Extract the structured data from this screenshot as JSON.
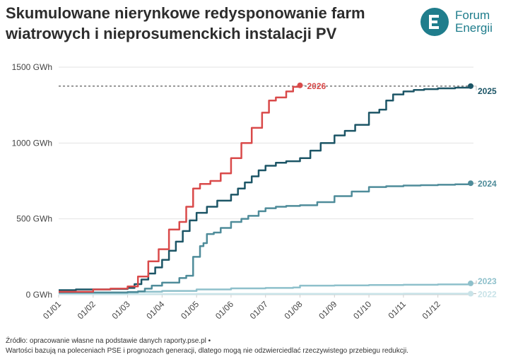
{
  "header": {
    "title": "Skumulowane nierynkowe redysponowanie farm wiatrowych i nieprosumenckich instalacji PV"
  },
  "logo": {
    "line1": "Forum",
    "line2": "Energii",
    "brand_color": "#1f7d8c"
  },
  "footer": {
    "source": "Źródło: opracowanie własne na podstawie danych raporty.pse.pl •",
    "note": "Wartości bazują na poleceniach PSE i prognozach generacji, dlatego mogą nie odzwierciedlać rzeczywistego przebiegu redukcji."
  },
  "chart_data": {
    "type": "line",
    "ylim": [
      0,
      1500
    ],
    "y_ticks": [
      {
        "value": 0,
        "label": "0 GWh"
      },
      {
        "value": 500,
        "label": "500 GWh"
      },
      {
        "value": 1000,
        "label": "1000 GWh"
      },
      {
        "value": 1500,
        "label": "1500 GWh"
      }
    ],
    "x_ticks": [
      "01/01",
      "01/02",
      "01/03",
      "01/04",
      "01/05",
      "01/06",
      "01/07",
      "01/08",
      "01/09",
      "01/10",
      "01/11",
      "01/12"
    ],
    "xlim": [
      1,
      12.95
    ],
    "reference_line": {
      "value": 1375,
      "style": "dashed"
    },
    "series": [
      {
        "name": "2022",
        "color": "#c9e3e8",
        "x": [
          1,
          3,
          5,
          7,
          9,
          11,
          12.95
        ],
        "y": [
          3,
          4,
          5,
          6,
          6,
          7,
          7
        ]
      },
      {
        "name": "2023",
        "color": "#8ec0cb",
        "x": [
          1,
          2,
          3,
          3.3,
          4,
          5,
          6,
          7,
          7.8,
          8,
          9,
          10,
          11,
          12,
          12.95
        ],
        "y": [
          12,
          12,
          15,
          20,
          25,
          35,
          42,
          45,
          48,
          60,
          62,
          64,
          66,
          68,
          75
        ]
      },
      {
        "name": "2024",
        "color": "#4f8c9a",
        "x": [
          1,
          2,
          3,
          3.3,
          3.5,
          3.7,
          4,
          4.5,
          4.7,
          4.9,
          5.1,
          5.2,
          5.3,
          5.5,
          5.7,
          6,
          6.3,
          6.5,
          6.8,
          7,
          7.3,
          7.6,
          8,
          8.5,
          9,
          9.5,
          10,
          10.5,
          11,
          11.5,
          12,
          12.5,
          12.95
        ],
        "y": [
          15,
          15,
          18,
          22,
          40,
          60,
          80,
          110,
          125,
          250,
          320,
          340,
          400,
          410,
          440,
          480,
          500,
          520,
          550,
          570,
          580,
          585,
          590,
          610,
          650,
          680,
          710,
          715,
          720,
          722,
          725,
          728,
          735
        ]
      },
      {
        "name": "2025",
        "color": "#1c5566",
        "x": [
          1,
          1.5,
          2,
          2.5,
          3,
          3.2,
          3.4,
          3.6,
          3.8,
          4,
          4.2,
          4.4,
          4.6,
          4.8,
          5,
          5.3,
          5.6,
          6,
          6.2,
          6.4,
          6.6,
          6.8,
          7,
          7.3,
          7.6,
          8,
          8.3,
          8.6,
          9,
          9.3,
          9.6,
          10,
          10.3,
          10.5,
          10.7,
          11,
          11.3,
          11.6,
          12,
          12.5,
          12.95
        ],
        "y": [
          30,
          35,
          35,
          38,
          45,
          70,
          100,
          140,
          180,
          230,
          290,
          350,
          420,
          490,
          540,
          580,
          620,
          660,
          700,
          740,
          780,
          820,
          850,
          870,
          880,
          900,
          950,
          1000,
          1050,
          1080,
          1120,
          1200,
          1220,
          1280,
          1320,
          1340,
          1350,
          1355,
          1360,
          1365,
          1375
        ]
      },
      {
        "name": "2026",
        "color": "#d94a4a",
        "x": [
          1,
          2,
          2.5,
          3,
          3.3,
          3.6,
          3.9,
          4.2,
          4.5,
          4.7,
          4.9,
          5.1,
          5.4,
          5.7,
          6,
          6.3,
          6.6,
          6.9,
          7.1,
          7.3,
          7.6,
          7.8,
          8
        ],
        "y": [
          20,
          35,
          40,
          55,
          120,
          220,
          300,
          430,
          480,
          580,
          700,
          730,
          750,
          800,
          900,
          1000,
          1100,
          1200,
          1280,
          1300,
          1340,
          1370,
          1380
        ]
      }
    ]
  }
}
